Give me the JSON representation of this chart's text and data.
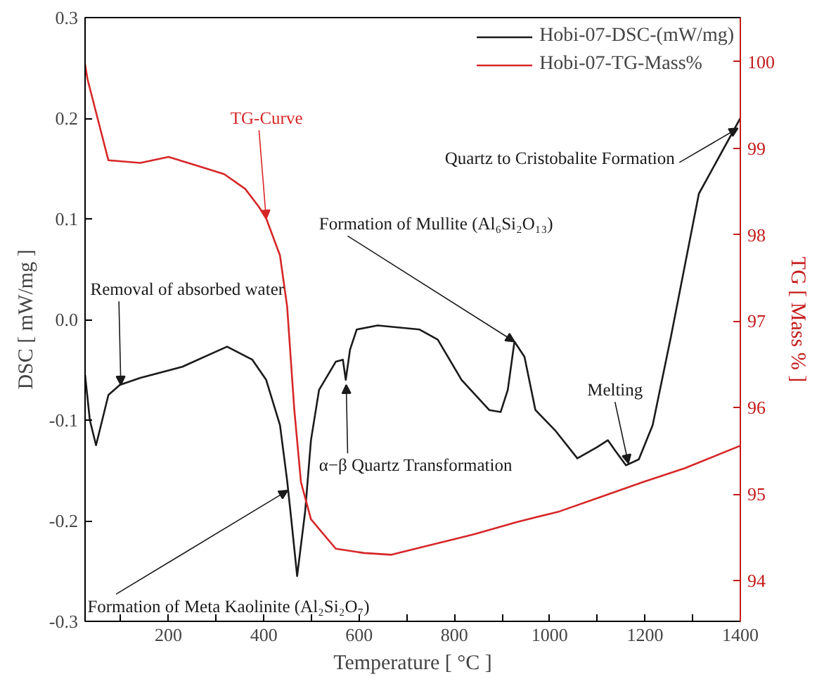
{
  "chart_data": {
    "type": "line",
    "xlabel": "Temperature [ °C ]",
    "ylabel": "DSC [ mW/mg ]",
    "y2label": "TG [ Mass % ]",
    "xlim": [
      25,
      1400
    ],
    "ylim": [
      -0.3,
      0.3
    ],
    "y2lim": [
      93.53,
      100.51
    ],
    "xticks": [
      {
        "value": 100,
        "label": null
      },
      200,
      {
        "value": 300,
        "label": null
      },
      400,
      {
        "value": 500,
        "label": null
      },
      600,
      {
        "value": 700,
        "label": null
      },
      800,
      {
        "value": 900,
        "label": null
      },
      1000,
      {
        "value": 1100,
        "label": null
      },
      1200,
      {
        "value": 1300,
        "label": null
      },
      1400
    ],
    "yticks": [
      -0.3,
      -0.2,
      -0.1,
      {
        "value": 0,
        "label": "0.0"
      },
      0.1,
      0.2,
      0.3
    ],
    "y2ticks": [
      94,
      95,
      96,
      97,
      98,
      99,
      100
    ],
    "grid": false,
    "legend": "top right",
    "line_style": "solid",
    "marker": "none",
    "series": [
      {
        "name": "Hobi-07-DSC-(mW/mg)",
        "color": "#1a1a1a",
        "x": [
          25,
          35,
          48,
          74,
          98,
          141,
          229,
          323,
          376,
          405,
          434,
          449,
          458,
          470,
          487,
          499,
          516,
          551,
          566,
          572,
          581,
          595,
          639,
          727,
          765,
          815,
          873,
          897,
          912,
          926,
          947,
          970,
          1011,
          1058,
          1099,
          1122,
          1137,
          1160,
          1187,
          1216,
          1254,
          1313,
          1400
        ],
        "values": [
          -0.055,
          -0.1,
          -0.125,
          -0.075,
          -0.065,
          -0.058,
          -0.047,
          -0.027,
          -0.04,
          -0.06,
          -0.105,
          -0.16,
          -0.2,
          -0.255,
          -0.19,
          -0.12,
          -0.07,
          -0.042,
          -0.04,
          -0.06,
          -0.03,
          -0.01,
          -0.006,
          -0.01,
          -0.02,
          -0.06,
          -0.09,
          -0.092,
          -0.07,
          -0.022,
          -0.037,
          -0.09,
          -0.11,
          -0.138,
          -0.127,
          -0.12,
          -0.13,
          -0.145,
          -0.139,
          -0.105,
          -0.018,
          0.125,
          0.2
        ]
      },
      {
        "name": "Hobi-07-TG-Mass%",
        "color": "#d62728",
        "axis": "y2",
        "x": [
          25,
          30,
          74,
          141,
          200,
          259,
          317,
          361,
          390,
          405,
          434,
          449,
          464,
          478,
          499,
          551,
          610,
          668,
          756,
          844,
          932,
          1020,
          1108,
          1196,
          1283,
          1400
        ],
        "values": [
          99.97,
          99.8,
          98.86,
          98.83,
          98.9,
          98.8,
          98.7,
          98.53,
          98.32,
          98.19,
          97.76,
          97.17,
          95.98,
          95.14,
          94.71,
          94.37,
          94.32,
          94.3,
          94.42,
          94.54,
          94.68,
          94.8,
          94.97,
          95.14,
          95.3,
          95.56
        ]
      }
    ],
    "annotations": [
      {
        "text": "TG-Curve",
        "x": 405,
        "y": 0.1
      },
      {
        "text": "Removal of absorbed water",
        "x": 100,
        "y": -0.065
      },
      {
        "text": "Formation of Mullite (Al₆Si₂O₁₃)",
        "x": 926,
        "y": -0.022
      },
      {
        "text": "Quartz to Cristobalite Formation",
        "x": 1395,
        "y": 0.19
      },
      {
        "text": "Melting",
        "x": 1165,
        "y": -0.143
      },
      {
        "text": "α−β Quartz Transformation",
        "x": 573,
        "y": -0.065
      },
      {
        "text": "Formation of Meta Kaolinite (Al₂Si₂O₇)",
        "x": 450,
        "y": -0.17
      }
    ]
  }
}
